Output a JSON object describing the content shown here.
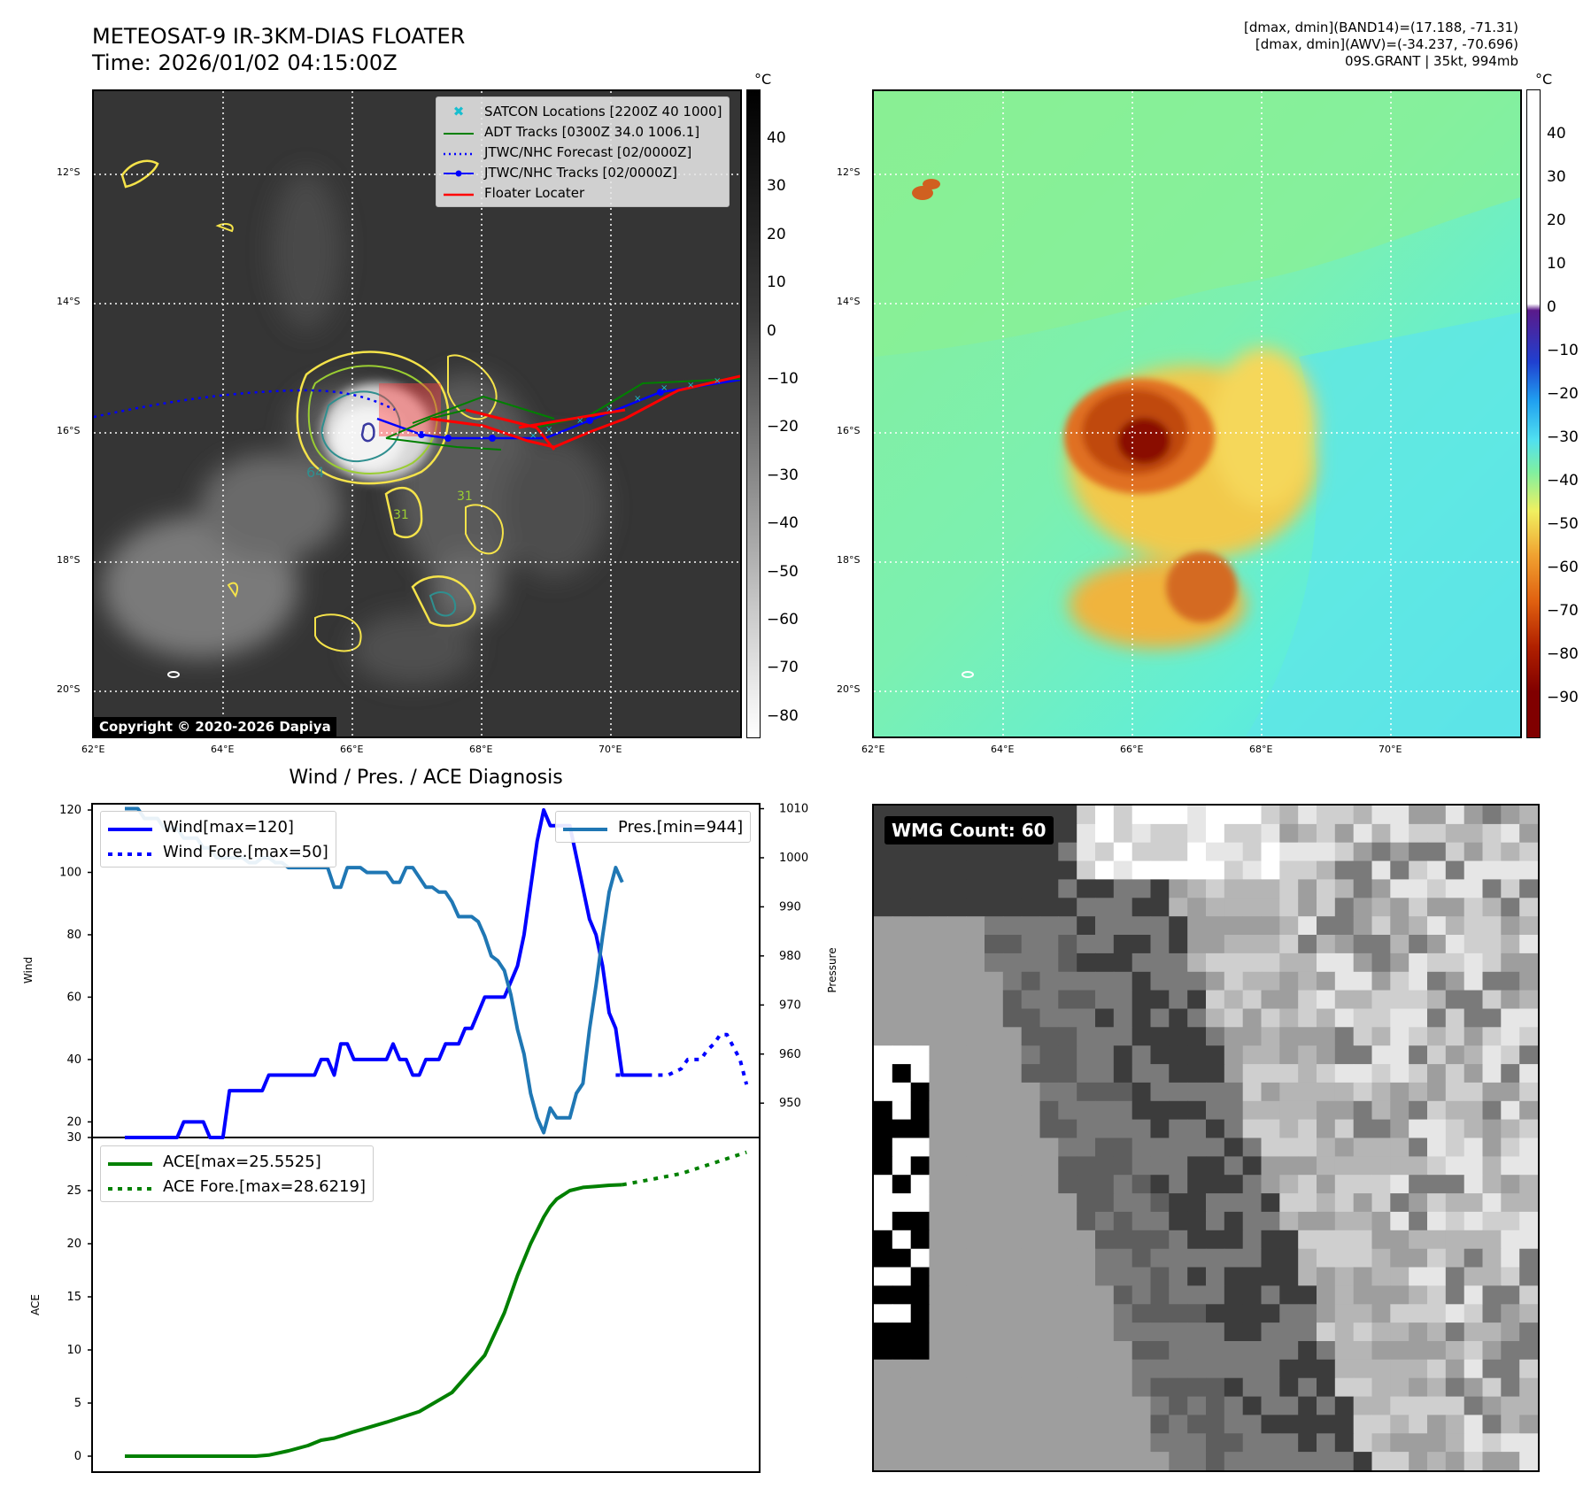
{
  "header": {
    "title_line1": "METEOSAT-9 IR-3KM-DIAS FLOATER",
    "title_line2": "Time: 2026/01/02 04:15:00Z",
    "info_line1": "[dmax, dmin](BAND14)=(17.188, -71.31)",
    "info_line2": "[dmax, dmin](AWV)=(-34.237, -70.696)",
    "info_line3": "09S.GRANT | 35kt, 994mb"
  },
  "map": {
    "lat_labels": [
      "12°S",
      "14°S",
      "16°S",
      "18°S",
      "20°S"
    ],
    "lon_labels": [
      "62°E",
      "64°E",
      "66°E",
      "68°E",
      "70°E"
    ],
    "copyright": "Copyright © 2020-2026 Dapiya",
    "contour_labels": [
      "64",
      "31",
      "31"
    ],
    "legend": [
      {
        "label": "SATCON Locations [2200Z 40 1000]",
        "color": "#17becf",
        "marker": "x"
      },
      {
        "label": "ADT Tracks [0300Z 34.0 1006.1]",
        "color": "#008000",
        "marker": "line"
      },
      {
        "label": "JTWC/NHC Forecast [02/0000Z]",
        "color": "#0000ff",
        "marker": "dotted"
      },
      {
        "label": "JTWC/NHC Tracks [02/0000Z]",
        "color": "#0000ff",
        "marker": "line-dot"
      },
      {
        "label": "Floater Locater",
        "color": "#ff0000",
        "marker": "line"
      }
    ]
  },
  "colorbar_gray": {
    "unit": "°C",
    "ticks": [
      "40",
      "30",
      "20",
      "10",
      "0",
      "−10",
      "−20",
      "−30",
      "−40",
      "−50",
      "−60",
      "−70",
      "−80"
    ]
  },
  "colorbar_color": {
    "unit": "°C",
    "ticks": [
      "40",
      "30",
      "20",
      "10",
      "0",
      "−10",
      "−20",
      "−30",
      "−40",
      "−50",
      "−60",
      "−70",
      "−80",
      "−90"
    ]
  },
  "diag": {
    "title": "Wind / Pres. / ACE Diagnosis",
    "wind_ylabel": "Wind",
    "pres_ylabel": "Pressure",
    "ace_ylabel": "ACE",
    "wind_ticks": [
      "120",
      "100",
      "80",
      "60",
      "40",
      "20"
    ],
    "pres_ticks": [
      "1010",
      "1000",
      "990",
      "980",
      "970",
      "960",
      "950"
    ],
    "ace_ticks": [
      "30",
      "25",
      "20",
      "15",
      "10",
      "5",
      "0"
    ],
    "legend_wind": "Wind[max=120]",
    "legend_wind_fore": "Wind Fore.[max=50]",
    "legend_pres": "Pres.[min=944]",
    "legend_ace": "ACE[max=25.5525]",
    "legend_ace_fore": "ACE Fore.[max=28.6219]"
  },
  "wmg": {
    "label": "WMG Count: 60"
  },
  "chart_data": [
    {
      "type": "line",
      "title": "Wind / Pres. / ACE Diagnosis",
      "ylabel": "Wind",
      "ylim": [
        15,
        122
      ],
      "series": [
        {
          "name": "Wind[max=120]",
          "color": "#0000ff",
          "x": [
            0,
            2,
            4,
            5,
            6,
            7,
            8,
            9,
            10,
            11,
            12,
            13,
            14,
            15,
            16,
            17,
            18,
            19,
            20,
            21,
            22,
            23,
            24,
            25,
            26,
            27,
            28,
            29,
            30,
            31,
            32,
            33,
            34,
            35,
            36,
            37,
            38,
            39,
            40,
            41,
            42,
            43,
            44,
            45,
            46,
            47,
            48,
            49,
            50,
            51,
            52,
            53,
            54,
            55,
            56,
            57,
            58,
            59,
            60,
            61,
            62,
            63,
            64,
            65,
            66,
            67,
            68,
            69,
            70,
            71,
            72,
            73,
            74,
            75,
            76,
            77,
            78,
            79,
            80
          ],
          "values": [
            15,
            15,
            15,
            15,
            15,
            15,
            15,
            20,
            20,
            20,
            20,
            15,
            15,
            15,
            30,
            30,
            30,
            30,
            30,
            30,
            35,
            35,
            35,
            35,
            35,
            35,
            35,
            35,
            40,
            40,
            35,
            45,
            45,
            40,
            40,
            40,
            40,
            40,
            40,
            45,
            40,
            40,
            35,
            35,
            40,
            40,
            40,
            45,
            45,
            45,
            50,
            50,
            55,
            60,
            60,
            60,
            60,
            65,
            70,
            80,
            95,
            110,
            120,
            115,
            115,
            115,
            115,
            105,
            95,
            85,
            80,
            70,
            55,
            50,
            35,
            35,
            35,
            35,
            35
          ]
        },
        {
          "name": "Wind Fore.[max=50]",
          "color": "#0000ff",
          "dashed": true,
          "x": [
            75,
            78,
            81,
            83,
            85,
            86,
            88,
            89,
            90,
            91,
            92,
            94,
            95
          ],
          "values": [
            35,
            35,
            35,
            35,
            37,
            40,
            40,
            43,
            45,
            48,
            48,
            40,
            32
          ]
        }
      ]
    },
    {
      "type": "line",
      "ylabel": "Pressure",
      "ylim": [
        943,
        1011
      ],
      "series": [
        {
          "name": "Pres.[min=944]",
          "color": "#1f77b4",
          "x": [
            0,
            2,
            3,
            4,
            5,
            6,
            7,
            8,
            9,
            10,
            11,
            12,
            13,
            14,
            15,
            16,
            17,
            18,
            19,
            20,
            21,
            22,
            23,
            24,
            25,
            26,
            27,
            28,
            29,
            30,
            31,
            32,
            33,
            34,
            35,
            36,
            37,
            38,
            39,
            40,
            41,
            42,
            43,
            44,
            45,
            46,
            47,
            48,
            49,
            50,
            51,
            52,
            53,
            54,
            55,
            56,
            57,
            58,
            59,
            60,
            61,
            62,
            63,
            64,
            65,
            66,
            67,
            68,
            69,
            70,
            71,
            72,
            73,
            74,
            75,
            76
          ],
          "values": [
            1010,
            1010,
            1008,
            1008,
            1008,
            1006,
            1006,
            1006,
            1004,
            1004,
            1004,
            1002,
            1002,
            1000,
            1000,
            1000,
            1000,
            1000,
            999,
            999,
            1000,
            1000,
            999,
            999,
            998,
            998,
            998,
            998,
            998,
            998,
            998,
            994,
            994,
            998,
            998,
            998,
            997,
            997,
            997,
            997,
            995,
            995,
            998,
            998,
            996,
            994,
            994,
            993,
            993,
            991,
            988,
            988,
            988,
            987,
            984,
            980,
            979,
            977,
            972,
            965,
            960,
            952,
            947,
            944,
            949,
            947,
            947,
            947,
            952,
            954,
            965,
            974,
            984,
            993,
            998,
            995
          ]
        }
      ]
    },
    {
      "type": "line",
      "ylabel": "ACE",
      "ylim": [
        -1.5,
        30
      ],
      "series": [
        {
          "name": "ACE[max=25.5525]",
          "color": "#008000",
          "x": [
            0,
            5,
            10,
            15,
            20,
            22,
            25,
            28,
            30,
            32,
            35,
            40,
            45,
            50,
            55,
            58,
            60,
            62,
            64,
            65,
            66,
            68,
            70,
            72,
            74,
            76
          ],
          "values": [
            0,
            0,
            0,
            0,
            0,
            0.1,
            0.5,
            1,
            1.5,
            1.7,
            2.3,
            3.2,
            4.2,
            6,
            9.5,
            13.5,
            17,
            20,
            22.5,
            23.5,
            24.2,
            25,
            25.3,
            25.4,
            25.5,
            25.55
          ]
        },
        {
          "name": "ACE Fore.[max=28.6219]",
          "color": "#008000",
          "dashed": true,
          "x": [
            76,
            80,
            85,
            90,
            95
          ],
          "values": [
            25.55,
            26,
            26.6,
            27.6,
            28.62
          ]
        }
      ]
    }
  ]
}
